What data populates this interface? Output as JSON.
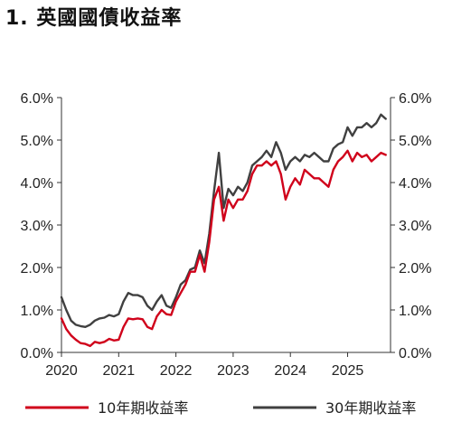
{
  "chart_data": {
    "type": "line",
    "title": "1. 英國國債收益率",
    "xlabel": "",
    "ylabel": "",
    "x_ticks": [
      "2020",
      "2021",
      "2022",
      "2023",
      "2024",
      "2025"
    ],
    "y_ticks": [
      "0.0%",
      "1.0%",
      "2.0%",
      "3.0%",
      "4.0%",
      "5.0%",
      "6.0%"
    ],
    "ylim": [
      0,
      6
    ],
    "xlim": [
      "2020-01",
      "2025-10"
    ],
    "grid": false,
    "legend_position": "bottom",
    "x": [
      "2020-01",
      "2020-02",
      "2020-03",
      "2020-04",
      "2020-05",
      "2020-06",
      "2020-07",
      "2020-08",
      "2020-09",
      "2020-10",
      "2020-11",
      "2020-12",
      "2021-01",
      "2021-02",
      "2021-03",
      "2021-04",
      "2021-05",
      "2021-06",
      "2021-07",
      "2021-08",
      "2021-09",
      "2021-10",
      "2021-11",
      "2021-12",
      "2022-01",
      "2022-02",
      "2022-03",
      "2022-04",
      "2022-05",
      "2022-06",
      "2022-07",
      "2022-08",
      "2022-09",
      "2022-10",
      "2022-11",
      "2022-12",
      "2023-01",
      "2023-02",
      "2023-03",
      "2023-04",
      "2023-05",
      "2023-06",
      "2023-07",
      "2023-08",
      "2023-09",
      "2023-10",
      "2023-11",
      "2023-12",
      "2024-01",
      "2024-02",
      "2024-03",
      "2024-04",
      "2024-05",
      "2024-06",
      "2024-07",
      "2024-08",
      "2024-09",
      "2024-10",
      "2024-11",
      "2024-12",
      "2025-01",
      "2025-02",
      "2025-03",
      "2025-04",
      "2025-05",
      "2025-06",
      "2025-07",
      "2025-08",
      "2025-09"
    ],
    "series": [
      {
        "name": "10年期收益率",
        "color": "#d0021b",
        "values": [
          0.8,
          0.55,
          0.4,
          0.3,
          0.22,
          0.2,
          0.15,
          0.25,
          0.22,
          0.25,
          0.32,
          0.28,
          0.3,
          0.6,
          0.8,
          0.78,
          0.8,
          0.78,
          0.6,
          0.55,
          0.85,
          1.0,
          0.9,
          0.88,
          1.2,
          1.4,
          1.6,
          1.9,
          1.9,
          2.3,
          1.9,
          2.6,
          3.6,
          3.9,
          3.1,
          3.6,
          3.4,
          3.6,
          3.6,
          3.8,
          4.2,
          4.4,
          4.4,
          4.5,
          4.4,
          4.5,
          4.2,
          3.6,
          3.9,
          4.1,
          3.95,
          4.3,
          4.2,
          4.1,
          4.1,
          4.0,
          3.9,
          4.3,
          4.5,
          4.6,
          4.75,
          4.5,
          4.7,
          4.6,
          4.65,
          4.5,
          4.6,
          4.7,
          4.65
        ]
      },
      {
        "name": "30年期收益率",
        "color": "#404040",
        "values": [
          1.3,
          1.0,
          0.75,
          0.65,
          0.62,
          0.6,
          0.65,
          0.75,
          0.8,
          0.82,
          0.88,
          0.85,
          0.9,
          1.2,
          1.4,
          1.35,
          1.35,
          1.3,
          1.1,
          1.0,
          1.2,
          1.35,
          1.1,
          1.05,
          1.3,
          1.6,
          1.7,
          1.95,
          2.0,
          2.4,
          2.1,
          2.8,
          3.8,
          4.7,
          3.4,
          3.85,
          3.7,
          3.9,
          3.8,
          4.0,
          4.4,
          4.5,
          4.6,
          4.75,
          4.6,
          4.95,
          4.7,
          4.3,
          4.5,
          4.6,
          4.5,
          4.65,
          4.6,
          4.7,
          4.6,
          4.5,
          4.5,
          4.8,
          4.9,
          4.95,
          5.3,
          5.1,
          5.3,
          5.3,
          5.4,
          5.3,
          5.4,
          5.6,
          5.5
        ]
      }
    ]
  }
}
